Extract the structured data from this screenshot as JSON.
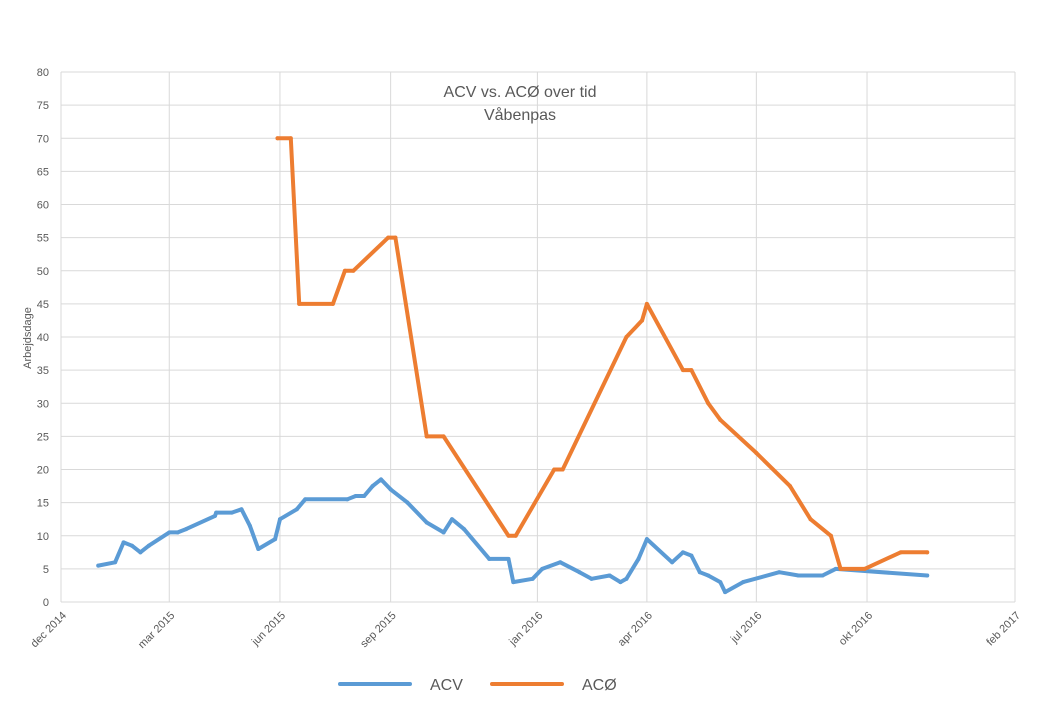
{
  "chart_data": {
    "type": "line",
    "title": "ACV vs. ACØ over tid",
    "subtitle": "Våbenpas",
    "xlabel": "",
    "ylabel": "Arbejdsdage",
    "xlim": [
      "2014-12-01",
      "2017-02-01"
    ],
    "ylim": [
      0,
      80
    ],
    "y_ticks": [
      0,
      5,
      10,
      15,
      20,
      25,
      30,
      35,
      40,
      45,
      50,
      55,
      60,
      65,
      70,
      75,
      80
    ],
    "x_ticks": [
      {
        "date": "2014-12-01",
        "label": "dec 2014"
      },
      {
        "date": "2015-03-01",
        "label": "mar 2015"
      },
      {
        "date": "2015-06-01",
        "label": "jun 2015"
      },
      {
        "date": "2015-09-01",
        "label": "sep 2015"
      },
      {
        "date": "2016-01-01",
        "label": "jan 2016"
      },
      {
        "date": "2016-04-01",
        "label": "apr 2016"
      },
      {
        "date": "2016-07-01",
        "label": "jul 2016"
      },
      {
        "date": "2016-10-01",
        "label": "okt 2016"
      },
      {
        "date": "2017-02-01",
        "label": "feb 2017"
      }
    ],
    "grid": true,
    "legend_position": "bottom",
    "series": [
      {
        "name": "ACV",
        "color": "#5b9bd5",
        "points": [
          [
            "2015-01-01",
            5.5
          ],
          [
            "2015-01-15",
            6
          ],
          [
            "2015-01-22",
            9
          ],
          [
            "2015-01-29",
            8.5
          ],
          [
            "2015-02-05",
            7.5
          ],
          [
            "2015-02-12",
            8.5
          ],
          [
            "2015-03-01",
            10.5
          ],
          [
            "2015-03-08",
            10.5
          ],
          [
            "2015-03-15",
            11
          ],
          [
            "2015-04-08",
            13
          ],
          [
            "2015-04-09",
            13.5
          ],
          [
            "2015-04-22",
            13.5
          ],
          [
            "2015-04-30",
            14
          ],
          [
            "2015-05-07",
            11.5
          ],
          [
            "2015-05-14",
            8
          ],
          [
            "2015-05-28",
            9.5
          ],
          [
            "2015-06-01",
            12.5
          ],
          [
            "2015-06-15",
            14
          ],
          [
            "2015-06-22",
            15.5
          ],
          [
            "2015-07-27",
            15.5
          ],
          [
            "2015-08-03",
            16
          ],
          [
            "2015-08-10",
            16
          ],
          [
            "2015-08-17",
            17.5
          ],
          [
            "2015-08-24",
            18.5
          ],
          [
            "2015-09-01",
            17
          ],
          [
            "2015-09-15",
            15
          ],
          [
            "2015-10-01",
            12
          ],
          [
            "2015-10-15",
            10.5
          ],
          [
            "2015-10-22",
            12.5
          ],
          [
            "2015-11-01",
            11
          ],
          [
            "2015-11-22",
            6.5
          ],
          [
            "2015-12-08",
            6.5
          ],
          [
            "2015-12-12",
            3
          ],
          [
            "2015-12-28",
            3.5
          ],
          [
            "2016-01-05",
            5
          ],
          [
            "2016-01-20",
            6
          ],
          [
            "2016-02-05",
            4.5
          ],
          [
            "2016-02-15",
            3.5
          ],
          [
            "2016-03-01",
            4
          ],
          [
            "2016-03-10",
            3
          ],
          [
            "2016-03-15",
            3.5
          ],
          [
            "2016-03-25",
            6.5
          ],
          [
            "2016-04-01",
            9.5
          ],
          [
            "2016-04-22",
            6
          ],
          [
            "2016-05-01",
            7.5
          ],
          [
            "2016-05-08",
            7
          ],
          [
            "2016-05-15",
            4.5
          ],
          [
            "2016-05-22",
            4
          ],
          [
            "2016-06-01",
            3
          ],
          [
            "2016-06-05",
            1.5
          ],
          [
            "2016-06-20",
            3
          ],
          [
            "2016-07-20",
            4.5
          ],
          [
            "2016-08-05",
            4
          ],
          [
            "2016-08-25",
            4
          ],
          [
            "2016-09-05",
            5
          ],
          [
            "2016-11-20",
            4
          ]
        ]
      },
      {
        "name": "ACØ",
        "color": "#ed7d31",
        "points": [
          [
            "2015-05-30",
            70
          ],
          [
            "2015-06-10",
            70
          ],
          [
            "2015-06-17",
            45
          ],
          [
            "2015-07-15",
            45
          ],
          [
            "2015-07-25",
            50
          ],
          [
            "2015-08-01",
            50
          ],
          [
            "2015-08-30",
            55
          ],
          [
            "2015-09-05",
            55
          ],
          [
            "2015-10-01",
            25
          ],
          [
            "2015-10-15",
            25
          ],
          [
            "2015-12-08",
            10
          ],
          [
            "2015-12-14",
            10
          ],
          [
            "2016-01-15",
            20
          ],
          [
            "2016-01-22",
            20
          ],
          [
            "2016-03-15",
            40
          ],
          [
            "2016-03-28",
            42.5
          ],
          [
            "2016-04-01",
            45
          ],
          [
            "2016-05-01",
            35
          ],
          [
            "2016-05-08",
            35
          ],
          [
            "2016-05-22",
            30
          ],
          [
            "2016-06-01",
            27.5
          ],
          [
            "2016-07-01",
            22.5
          ],
          [
            "2016-07-29",
            17.5
          ],
          [
            "2016-08-15",
            12.5
          ],
          [
            "2016-09-01",
            10
          ],
          [
            "2016-09-09",
            5
          ],
          [
            "2016-09-29",
            5
          ],
          [
            "2016-10-29",
            7.5
          ],
          [
            "2016-11-20",
            7.5
          ]
        ]
      }
    ]
  }
}
